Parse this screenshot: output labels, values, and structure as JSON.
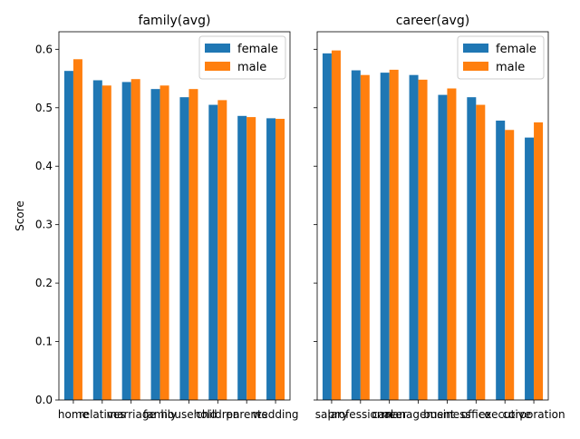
{
  "colors": {
    "female": "#1f77b4",
    "male": "#ff7f0e"
  },
  "chart_data": [
    {
      "type": "bar",
      "title": "family(avg)",
      "xlabel": "",
      "ylabel": "Score",
      "ylim": [
        0,
        0.63
      ],
      "yticks": [
        "0.0",
        "0.1",
        "0.2",
        "0.3",
        "0.4",
        "0.5",
        "0.6"
      ],
      "grid": false,
      "legend_position": "top-right",
      "categories": [
        "home",
        "relatives",
        "marriage",
        "family",
        "household",
        "children",
        "parents",
        "wedding"
      ],
      "series": [
        {
          "name": "female",
          "values": [
            0.563,
            0.547,
            0.544,
            0.532,
            0.518,
            0.505,
            0.486,
            0.482
          ]
        },
        {
          "name": "male",
          "values": [
            0.583,
            0.538,
            0.549,
            0.538,
            0.532,
            0.513,
            0.484,
            0.481
          ]
        }
      ]
    },
    {
      "type": "bar",
      "title": "career(avg)",
      "xlabel": "",
      "ylabel": "",
      "ylim": [
        0,
        0.63
      ],
      "grid": false,
      "legend_position": "top-right",
      "categories": [
        "salary",
        "professional",
        "career",
        "management",
        "business",
        "office",
        "executive",
        "corporation"
      ],
      "series": [
        {
          "name": "female",
          "values": [
            0.593,
            0.564,
            0.56,
            0.556,
            0.522,
            0.518,
            0.478,
            0.449
          ]
        },
        {
          "name": "male",
          "values": [
            0.598,
            0.556,
            0.565,
            0.548,
            0.533,
            0.505,
            0.462,
            0.475
          ]
        }
      ]
    }
  ]
}
